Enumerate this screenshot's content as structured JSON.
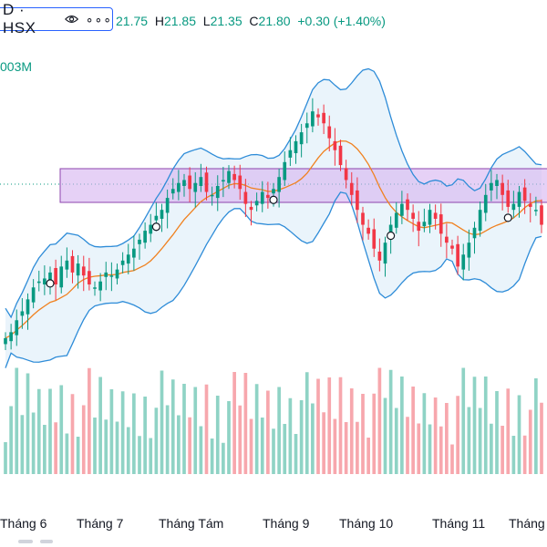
{
  "header": {
    "symbol": "D · HSX",
    "more": "∘∘∘",
    "eye_icon": "eye-icon",
    "ohlc": {
      "open_label": "",
      "open": "21.75",
      "high_label": "H",
      "high": "21.85",
      "low_label": "L",
      "low": "21.35",
      "close_label": "C",
      "close": "21.80",
      "change": "+0.30",
      "change_pct": "(+1.40%)"
    },
    "volume": "003M"
  },
  "x_axis": {
    "labels": [
      "Tháng 6",
      "Tháng 7",
      "Tháng Tám",
      "Tháng 9",
      "Tháng 10",
      "Tháng 11",
      "Tháng"
    ]
  },
  "colors": {
    "up": "#089981",
    "down": "#f23645",
    "bb_line": "#2e8cd8",
    "bb_fill": "#eaf4fb",
    "ma": "#f0811f",
    "zone_fill": "#d5b3f0",
    "zone_border": "#8e44ad",
    "vol_up": "#8fd3c5",
    "vol_down": "#f7a7ad"
  },
  "chart_data": {
    "type": "candlestick",
    "series": [
      {
        "name": "",
        "closes": [
          18.0,
          18.2,
          18.6,
          18.9,
          19.3,
          19.7,
          19.9,
          20.0,
          20.2,
          19.8,
          20.4,
          20.6,
          20.2,
          20.5,
          20.1,
          19.8,
          19.7,
          19.9,
          20.2,
          20.1,
          20.3,
          20.6,
          20.8,
          21.0,
          21.3,
          21.6,
          21.8,
          22.1,
          22.3,
          22.7,
          23.0,
          23.2,
          23.3,
          23.0,
          23.2,
          23.4,
          22.9,
          22.8,
          23.1,
          23.3,
          23.6,
          23.3,
          23.0,
          22.5,
          22.3,
          22.6,
          22.9,
          22.7,
          23.0,
          23.4,
          23.9,
          24.3,
          24.6,
          24.9,
          25.2,
          25.6,
          25.4,
          25.2,
          24.7,
          24.3,
          23.8,
          23.3,
          22.8,
          22.3,
          21.8,
          21.5,
          21.0,
          20.6,
          21.2,
          21.8,
          22.2,
          22.5,
          22.3,
          22.0,
          21.6,
          21.9,
          22.3,
          22.0,
          21.5,
          21.2,
          21.0,
          20.4,
          20.8,
          21.2,
          21.7,
          22.3,
          22.8,
          23.2,
          23.3,
          22.8,
          22.4,
          22.5,
          22.9,
          22.6,
          22.4,
          22.3,
          21.8
        ]
      }
    ],
    "volume_note": "volume bars below price",
    "overlays": [
      "Bollinger Bands",
      "Moving Average",
      "price zone"
    ]
  }
}
